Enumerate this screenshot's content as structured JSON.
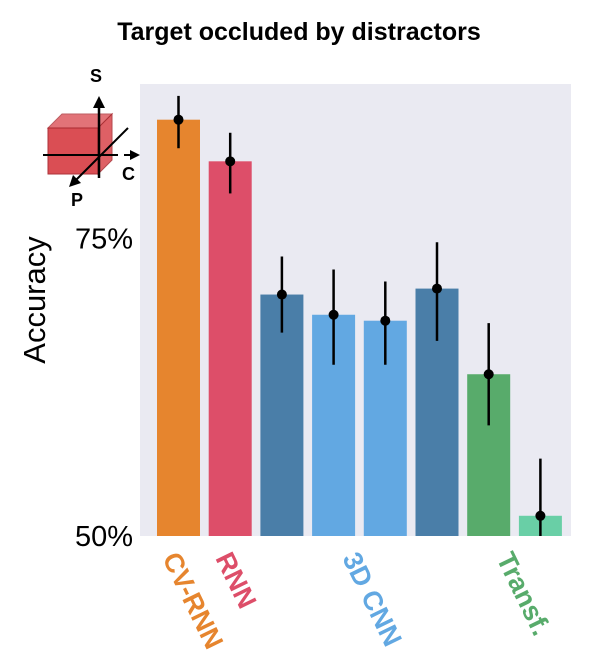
{
  "chart_data": {
    "type": "bar",
    "title": "Target occluded by distractors",
    "ylabel": "Accuracy",
    "ylim": [
      50,
      88
    ],
    "yticks": [
      {
        "value": 50,
        "label": "50%"
      },
      {
        "value": 75,
        "label": "75%"
      }
    ],
    "grid": false,
    "bars": [
      {
        "value": 85.0,
        "err_low": 82.6,
        "err_high": 87.0,
        "color": "#e6852e"
      },
      {
        "value": 81.5,
        "err_low": 78.8,
        "err_high": 83.9,
        "color": "#dd4e69"
      },
      {
        "value": 70.3,
        "err_low": 67.1,
        "err_high": 73.5,
        "color": "#4a7ea8"
      },
      {
        "value": 68.6,
        "err_low": 64.4,
        "err_high": 72.4,
        "color": "#62a8e2"
      },
      {
        "value": 68.1,
        "err_low": 64.4,
        "err_high": 71.4,
        "color": "#62a8e2"
      },
      {
        "value": 70.8,
        "err_low": 66.4,
        "err_high": 74.7,
        "color": "#4a7ea8"
      },
      {
        "value": 63.6,
        "err_low": 59.3,
        "err_high": 67.9,
        "color": "#58ab6b"
      },
      {
        "value": 51.7,
        "err_low": 50.0,
        "err_high": 56.5,
        "color": "#69cfa6"
      }
    ],
    "groups": [
      {
        "label": "CV-RNN",
        "color": "#e6852e"
      },
      {
        "label": "RNN",
        "color": "#dd4e69"
      },
      {
        "label": "3D CNN",
        "color": "#62a8e2"
      },
      {
        "label": "Transf.",
        "color": "#58ab6b"
      }
    ]
  },
  "inset": {
    "axis_s": "S",
    "axis_c": "C",
    "axis_p": "P",
    "cube_color": "#d9454b"
  }
}
